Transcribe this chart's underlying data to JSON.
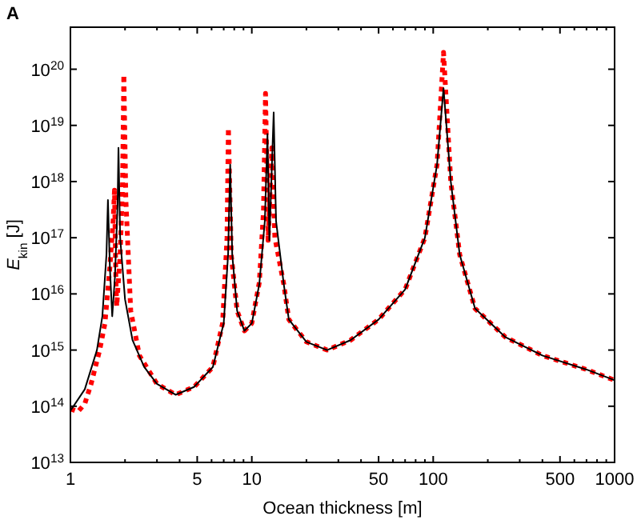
{
  "chart_data": {
    "type": "line",
    "title": "A",
    "xlabel": "Ocean thickness [m]",
    "ylabel": "E$_{kin}$ [J]",
    "log": "xy",
    "grid": false,
    "xlim": [
      1,
      1000
    ],
    "ylim": [
      10000000000000.0,
      5.6e+20
    ],
    "xticks": [
      1,
      {
        "value": 2,
        "label": null
      },
      {
        "value": 3,
        "label": null
      },
      {
        "value": 4,
        "label": null
      },
      5,
      {
        "value": 6,
        "label": null
      },
      {
        "value": 7,
        "label": null
      },
      {
        "value": 8,
        "label": null
      },
      {
        "value": 9,
        "label": null
      },
      10,
      {
        "value": 20,
        "label": null
      },
      {
        "value": 30,
        "label": null
      },
      {
        "value": 40,
        "label": null
      },
      50,
      {
        "value": 60,
        "label": null
      },
      {
        "value": 70,
        "label": null
      },
      {
        "value": 80,
        "label": null
      },
      {
        "value": 90,
        "label": null
      },
      100,
      {
        "value": 200,
        "label": null
      },
      {
        "value": 300,
        "label": null
      },
      {
        "value": 400,
        "label": null
      },
      500,
      {
        "value": 600,
        "label": null
      },
      {
        "value": 700,
        "label": null
      },
      {
        "value": 800,
        "label": null
      },
      {
        "value": 900,
        "label": null
      },
      1000
    ],
    "yticks": [
      {
        "value": 10000000000000.0,
        "label": "10$^{13}$"
      },
      {
        "value": 100000000000000.0,
        "label": "10$^{14}$"
      },
      {
        "value": 1000000000000000.0,
        "label": "10$^{15}$"
      },
      {
        "value": 1e+16,
        "label": "10$^{16}$"
      },
      {
        "value": 1e+17,
        "label": "10$^{17}$"
      },
      {
        "value": 1e+18,
        "label": "10$^{18}$"
      },
      {
        "value": 1e+19,
        "label": "10$^{19}$"
      },
      {
        "value": 1e+20,
        "label": "10$^{20}$"
      }
    ],
    "series": [
      {
        "color": "#ff0000",
        "line_style": "dotted",
        "x": [
          1,
          1.1,
          1.2,
          1.3,
          1.45,
          1.55,
          1.65,
          1.72,
          1.75,
          1.78,
          1.8,
          1.88,
          1.94,
          1.97,
          2.02,
          2.15,
          2.4,
          3,
          3.8,
          4.8,
          6.1,
          6.9,
          7.3,
          7.43,
          7.7,
          8.3,
          9.1,
          10,
          11,
          11.6,
          11.9,
          12.3,
          12.9,
          13.4,
          15,
          16,
          20,
          26,
          35,
          50,
          70,
          90,
          105,
          114,
          125,
          140,
          170,
          250,
          400,
          700,
          1000
        ],
        "values": [
          90000000000000.0,
          80000000000000.0,
          110000000000000.0,
          250000000000000.0,
          1000000000000000.0,
          3000000000000000.0,
          3e+16,
          2e+17,
          7e+17,
          2e+16,
          6000000000000000.0,
          5e+16,
          1e+18,
          8e+19,
          5e+17,
          5000000000000000.0,
          800000000000000.0,
          250000000000000.0,
          160000000000000.0,
          220000000000000.0,
          500000000000000.0,
          3000000000000000.0,
          1e+17,
          9e+18,
          5e+16,
          5000000000000000.0,
          2200000000000000.0,
          3000000000000000.0,
          1.6e+16,
          3e+17,
          3.7e+19,
          9e+16,
          4e+18,
          1e+17,
          1.5e+16,
          3500000000000000.0,
          1400000000000000.0,
          1000000000000000.0,
          1500000000000000.0,
          3500000000000000.0,
          1.2e+16,
          1e+17,
          2e+18,
          2e+20,
          1e+18,
          5e+16,
          5500000000000000.0,
          1700000000000000.0,
          800000000000000.0,
          450000000000000.0,
          290000000000000.0
        ]
      },
      {
        "color": "#000000",
        "line_style": "solid",
        "x": [
          1,
          1.2,
          1.4,
          1.5,
          1.58,
          1.61,
          1.65,
          1.7,
          1.76,
          1.82,
          1.84,
          1.88,
          2,
          2.2,
          2.55,
          3,
          3.8,
          4.8,
          6.1,
          7,
          7.4,
          7.6,
          7.8,
          8.3,
          9.1,
          10,
          11,
          11.8,
          12.2,
          12.5,
          13.2,
          13.6,
          15,
          16,
          20,
          26,
          35,
          50,
          70,
          90,
          105,
          114,
          125,
          140,
          170,
          250,
          400,
          700,
          1000
        ],
        "values": [
          83000000000000.0,
          200000000000000.0,
          1000000000000000.0,
          4000000000000000.0,
          5e+16,
          4.7e+17,
          3e+16,
          4000000000000000.0,
          2e+16,
          4e+17,
          4e+18,
          1e+17,
          8000000000000000.0,
          1500000000000000.0,
          500000000000000.0,
          250000000000000.0,
          160000000000000.0,
          220000000000000.0,
          500000000000000.0,
          3000000000000000.0,
          5e+16,
          2e+18,
          5e+16,
          5000000000000000.0,
          2200000000000000.0,
          3000000000000000.0,
          1.5e+16,
          2e+17,
          7e+18,
          9e+16,
          1.7e+19,
          2e+17,
          1.5e+16,
          3500000000000000.0,
          1400000000000000.0,
          1000000000000000.0,
          1500000000000000.0,
          3500000000000000.0,
          1.2e+16,
          1e+17,
          2e+18,
          4.6e+19,
          1e+18,
          5e+16,
          5500000000000000.0,
          1700000000000000.0,
          800000000000000.0,
          450000000000000.0,
          290000000000000.0
        ]
      }
    ]
  }
}
